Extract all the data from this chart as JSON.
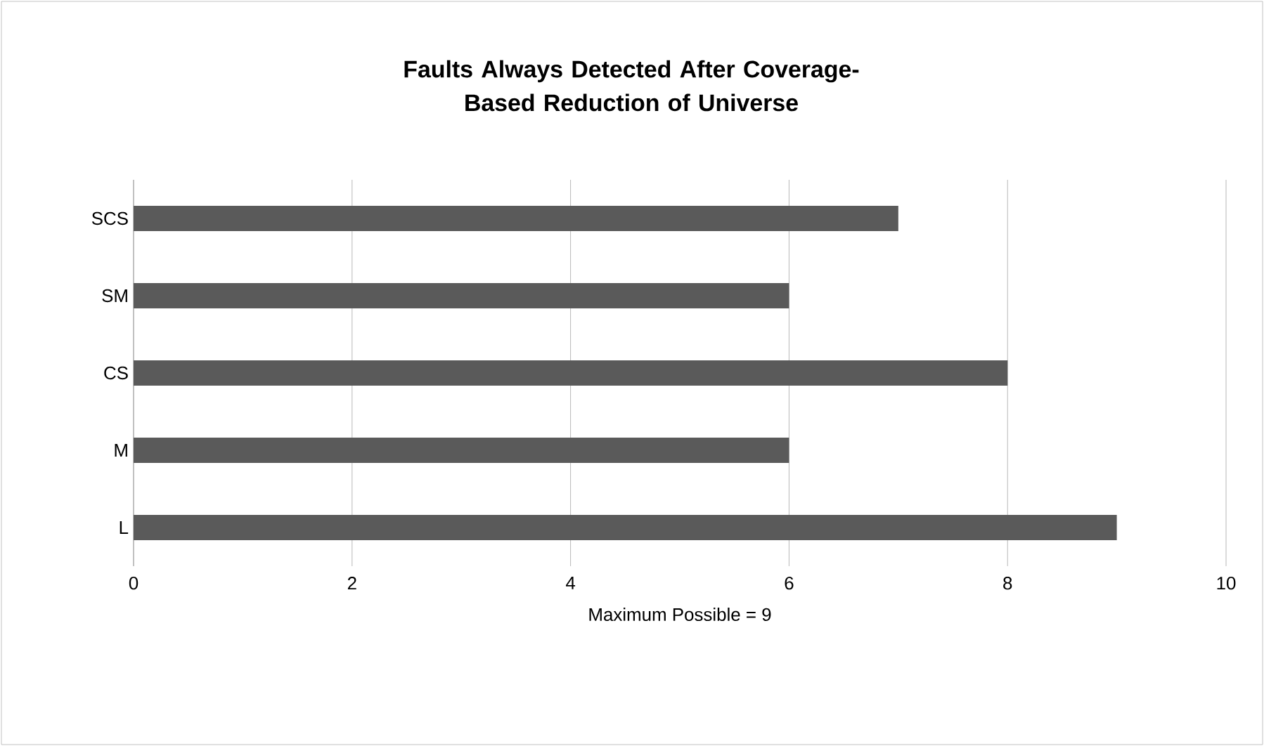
{
  "chart_data": {
    "type": "bar",
    "orientation": "horizontal",
    "title": "Faults Always Detected After Coverage-Based Reduction of Universe",
    "categories": [
      "SCS",
      "SM",
      "CS",
      "M",
      "L"
    ],
    "values": [
      7,
      6,
      8,
      6,
      9
    ],
    "color": "#5a5a5a",
    "xlim": [
      0,
      10
    ],
    "xticks": [
      0,
      2,
      4,
      6,
      8,
      10
    ],
    "xlabel": "Maximum Possible  = 9",
    "grid": "x"
  }
}
